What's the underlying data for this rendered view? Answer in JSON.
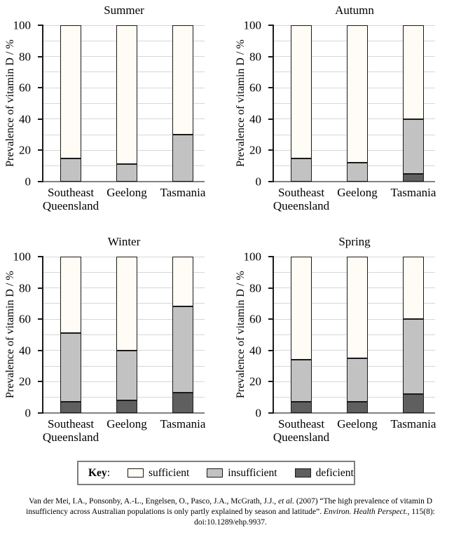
{
  "figure": {
    "kind": "stacked-bar small-multiples, 2x2 grid by season",
    "background": "#ffffff"
  },
  "colors": {
    "sufficient": "#fffcf5",
    "insufficient": "#c2c2c2",
    "deficient": "#5f5f5f",
    "bar_border": "#1a1a1a",
    "gridline": "#d6d6d6",
    "baseline": "#818181"
  },
  "chart_data": [
    {
      "type": "bar",
      "stacked": true,
      "title": "Summer",
      "xlabel": "",
      "ylabel": "Prevalence of vitamin D / %",
      "ylim": [
        0,
        100
      ],
      "ytick_step": 20,
      "grid_step": 10,
      "grid": true,
      "categories": [
        "Southeast Queensland",
        "Geelong",
        "Tasmania"
      ],
      "series": [
        {
          "name": "deficient",
          "values": [
            0,
            0,
            0
          ]
        },
        {
          "name": "insufficient",
          "values": [
            15,
            11,
            30
          ]
        },
        {
          "name": "sufficient",
          "values": [
            85,
            89,
            70
          ]
        }
      ]
    },
    {
      "type": "bar",
      "stacked": true,
      "title": "Autumn",
      "xlabel": "",
      "ylabel": "Prevalence of vitamin D / %",
      "ylim": [
        0,
        100
      ],
      "ytick_step": 20,
      "grid_step": 10,
      "grid": true,
      "categories": [
        "Southeast Queensland",
        "Geelong",
        "Tasmania"
      ],
      "series": [
        {
          "name": "deficient",
          "values": [
            0,
            0,
            5
          ]
        },
        {
          "name": "insufficient",
          "values": [
            15,
            12,
            35
          ]
        },
        {
          "name": "sufficient",
          "values": [
            85,
            88,
            60
          ]
        }
      ]
    },
    {
      "type": "bar",
      "stacked": true,
      "title": "Winter",
      "xlabel": "",
      "ylabel": "Prevalence of vitamin D / %",
      "ylim": [
        0,
        100
      ],
      "ytick_step": 20,
      "grid_step": 10,
      "grid": true,
      "categories": [
        "Southeast Queensland",
        "Geelong",
        "Tasmania"
      ],
      "series": [
        {
          "name": "deficient",
          "values": [
            7,
            8,
            13
          ]
        },
        {
          "name": "insufficient",
          "values": [
            44,
            32,
            55
          ]
        },
        {
          "name": "sufficient",
          "values": [
            49,
            60,
            32
          ]
        }
      ]
    },
    {
      "type": "bar",
      "stacked": true,
      "title": "Spring",
      "xlabel": "",
      "ylabel": "Prevalence of vitamin D / %",
      "ylim": [
        0,
        100
      ],
      "ytick_step": 20,
      "grid_step": 10,
      "grid": true,
      "categories": [
        "Southeast Queensland",
        "Geelong",
        "Tasmania"
      ],
      "series": [
        {
          "name": "deficient",
          "values": [
            7,
            7,
            12
          ]
        },
        {
          "name": "insufficient",
          "values": [
            27,
            28,
            48
          ]
        },
        {
          "name": "sufficient",
          "values": [
            66,
            65,
            40
          ]
        }
      ]
    }
  ],
  "legend": {
    "position": "bottom",
    "key_label": "Key",
    "separator": ":",
    "items": [
      {
        "label": "sufficient",
        "color": "#fffcf5"
      },
      {
        "label": "insufficient",
        "color": "#c2c2c2"
      },
      {
        "label": "deficient",
        "color": "#5f5f5f"
      }
    ]
  },
  "citation": {
    "part1": "Van der Mei, I.A., Ponsonby, A.-L., Engelsen, O., Pasco, J.A., McGrath, J.J., ",
    "part2_italic": "et al.",
    "part3": " (2007) “The high prevalence of vitamin D insufficiency across Australian populations is only partly explained by season and latitude”. ",
    "part4_italic": "Environ. Health Perspect.",
    "part5": ", 115(8): doi:10.1289/ehp.9937."
  }
}
